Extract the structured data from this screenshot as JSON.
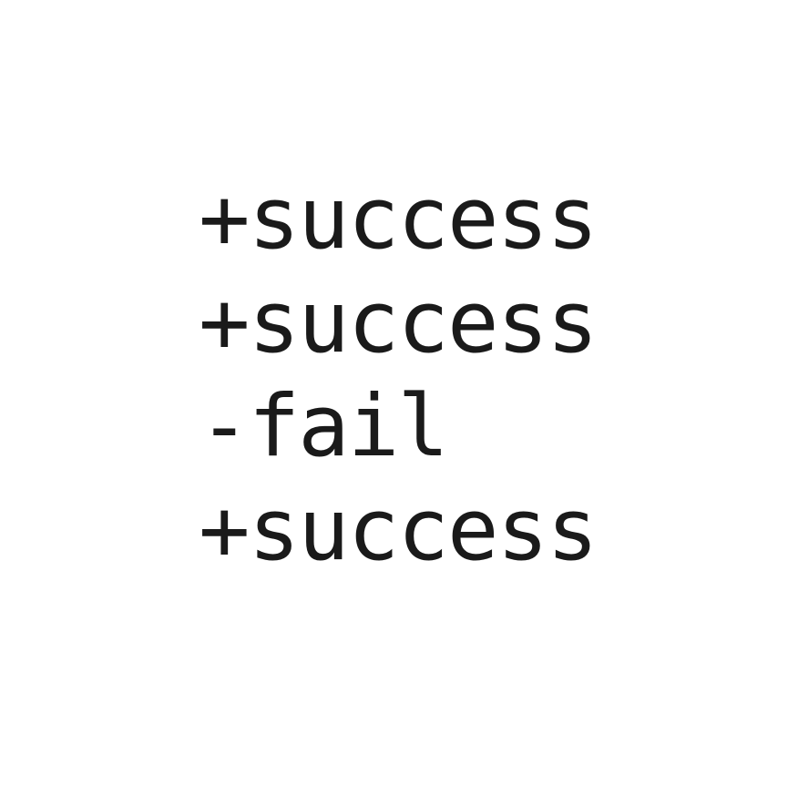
{
  "lines": [
    {
      "text": "+success",
      "status": "success"
    },
    {
      "text": "+success",
      "status": "success"
    },
    {
      "text": "-fail",
      "status": "fail"
    },
    {
      "text": "+success",
      "status": "success"
    }
  ],
  "colors": {
    "background": "#ffffff",
    "text": "#1a1a1a"
  }
}
